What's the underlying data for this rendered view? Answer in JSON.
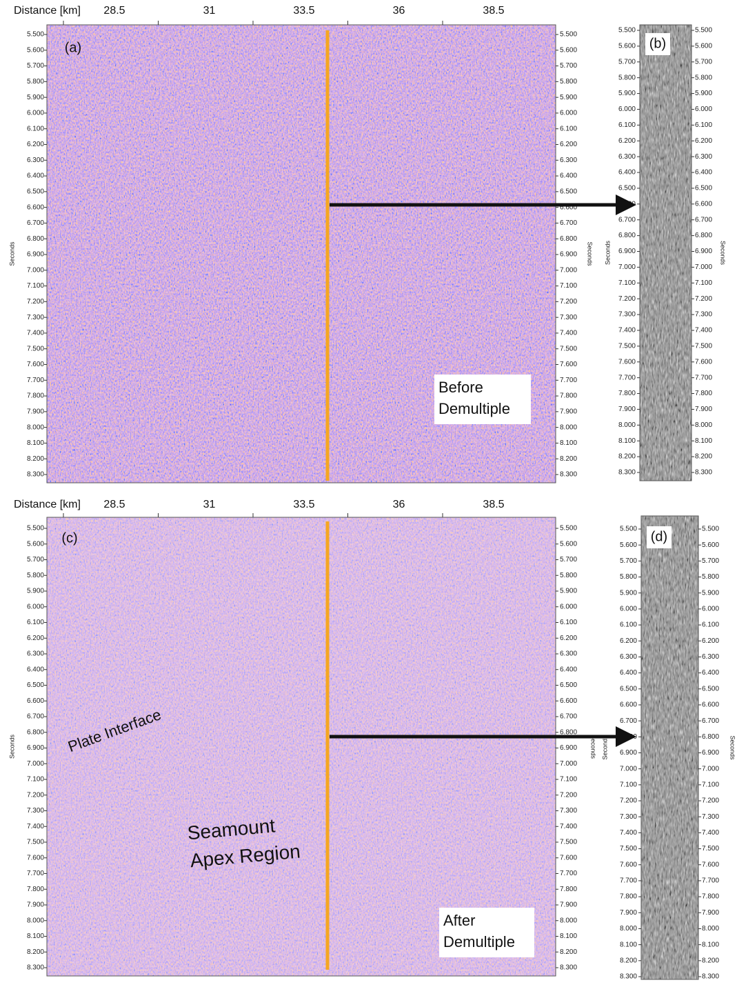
{
  "header": {
    "distance_label": "Distance [km]",
    "distance_ticks": [
      28.5,
      31,
      33.5,
      36,
      38.5
    ]
  },
  "time_ticks": [
    {
      "value": 5.5,
      "label": "5.500"
    },
    {
      "value": 5.6,
      "label": "5.600"
    },
    {
      "value": 5.7,
      "label": "5.700"
    },
    {
      "value": 5.8,
      "label": "5.800"
    },
    {
      "value": 5.9,
      "label": "5.900"
    },
    {
      "value": 6.0,
      "label": "6.000"
    },
    {
      "value": 6.1,
      "label": "6.100"
    },
    {
      "value": 6.2,
      "label": "6.200"
    },
    {
      "value": 6.3,
      "label": "6.300"
    },
    {
      "value": 6.4,
      "label": "6.400"
    },
    {
      "value": 6.5,
      "label": "6.500"
    },
    {
      "value": 6.6,
      "label": "6.600"
    },
    {
      "value": 6.7,
      "label": "6.700"
    },
    {
      "value": 6.8,
      "label": "6.800"
    },
    {
      "value": 6.9,
      "label": "6.900"
    },
    {
      "value": 7.0,
      "label": "7.000"
    },
    {
      "value": 7.1,
      "label": "7.100"
    },
    {
      "value": 7.2,
      "label": "7.200"
    },
    {
      "value": 7.3,
      "label": "7.300"
    },
    {
      "value": 7.4,
      "label": "7.400"
    },
    {
      "value": 7.5,
      "label": "7.500"
    },
    {
      "value": 7.6,
      "label": "7.600"
    },
    {
      "value": 7.7,
      "label": "7.700"
    },
    {
      "value": 7.8,
      "label": "7.800"
    },
    {
      "value": 7.9,
      "label": "7.900"
    },
    {
      "value": 8.0,
      "label": "8.000"
    },
    {
      "value": 8.1,
      "label": "8.100"
    },
    {
      "value": 8.2,
      "label": "8.200"
    },
    {
      "value": 8.3,
      "label": "8.300"
    }
  ],
  "seconds_label": "Seconds",
  "panels": [
    {
      "label": "(a)",
      "annotation": [
        "Before",
        "Demultiple"
      ]
    },
    {
      "label": "(b)"
    },
    {
      "label": "(c)",
      "annotation": [
        "After",
        "Demultiple"
      ],
      "plate_interface": "Plate Interface",
      "seamount": [
        "Seamount",
        "Apex Region"
      ]
    },
    {
      "label": "(d)"
    }
  ]
}
